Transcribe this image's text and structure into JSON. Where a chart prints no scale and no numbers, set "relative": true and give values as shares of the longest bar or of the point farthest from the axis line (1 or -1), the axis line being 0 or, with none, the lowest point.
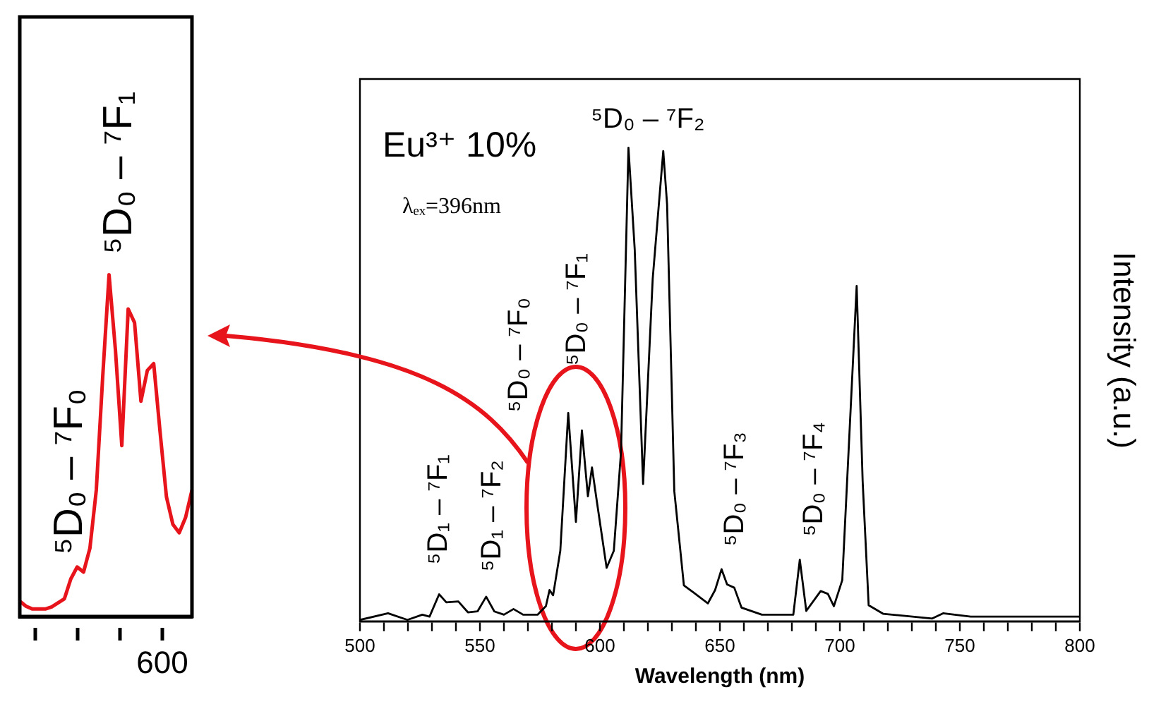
{
  "chart_data": [
    {
      "type": "line",
      "relative": true,
      "tick_labels": false,
      "categories": [
        null,
        null,
        null,
        null,
        null,
        null,
        null,
        null,
        null,
        null,
        null,
        null,
        null,
        null,
        null,
        null,
        null,
        null,
        null,
        null,
        null,
        null,
        null,
        null,
        null,
        null,
        null,
        null
      ],
      "annotations": [
        "⁵D₀ – ⁷F₀",
        "⁵D₀ – ⁷F₁",
        "600"
      ],
      "series": [
        {
          "color": "#e8141b",
          "values": [
            0.045,
            0.03,
            0.022,
            0.022,
            0.022,
            0.028,
            0.04,
            0.052,
            0.11,
            0.145,
            0.13,
            0.2,
            0.37,
            0.7,
            1.0,
            0.78,
            0.5,
            0.9,
            0.86,
            0.63,
            0.72,
            0.74,
            0.54,
            0.35,
            0.27,
            0.245,
            0.29,
            0.37
          ]
        }
      ]
    },
    {
      "type": "line",
      "relative": true,
      "tick_labels": "x",
      "xlabel": "Wavelength (nm)",
      "ylabel": "Intensity (a.u.)",
      "xlim": [
        500,
        800
      ],
      "xticks": [
        500,
        {
          "value": 510,
          "label": null
        },
        {
          "value": 520,
          "label": null
        },
        {
          "value": 530,
          "label": null
        },
        {
          "value": 540,
          "label": null
        },
        550,
        {
          "value": 560,
          "label": null
        },
        {
          "value": 570,
          "label": null
        },
        {
          "value": 580,
          "label": null
        },
        {
          "value": 590,
          "label": null
        },
        600,
        {
          "value": 610,
          "label": null
        },
        {
          "value": 620,
          "label": null
        },
        {
          "value": 630,
          "label": null
        },
        {
          "value": 640,
          "label": null
        },
        650,
        {
          "value": 660,
          "label": null
        },
        {
          "value": 670,
          "label": null
        },
        {
          "value": 680,
          "label": null
        },
        {
          "value": 690,
          "label": null
        },
        700,
        {
          "value": 710,
          "label": null
        },
        {
          "value": 720,
          "label": null
        },
        {
          "value": 730,
          "label": null
        },
        {
          "value": 740,
          "label": null
        },
        750,
        {
          "value": 760,
          "label": null
        },
        {
          "value": 770,
          "label": null
        },
        {
          "value": 780,
          "label": null
        },
        {
          "value": 790,
          "label": null
        },
        800
      ],
      "annotations": [
        "Eu³⁺ 10%",
        "λₑₓ=396nm",
        "⁵D₁ – ⁷F₁",
        "⁵D₁ – ⁷F₂",
        "⁵D₀ – ⁷F₀",
        "⁵D₀ – ⁷F₁",
        "⁵D₀ – ⁷F₂",
        "⁵D₀ – ⁷F₃",
        "⁵D₀ – ⁷F₄"
      ],
      "series": [
        {
          "color": "#000000",
          "x": [
            500,
            511.7,
            519.8,
            526,
            529,
            533,
            536,
            541,
            545,
            549,
            552.6,
            556,
            560,
            564,
            568,
            574,
            577.5,
            579,
            580.5,
            583.5,
            586.8,
            590,
            592.5,
            595,
            596.7,
            598.7,
            602.8,
            605.8,
            608.8,
            611.9,
            614.5,
            618,
            622,
            626.4,
            628,
            631,
            635,
            639,
            645,
            648,
            650.7,
            653,
            656,
            659,
            667.5,
            680.6,
            683.3,
            686,
            692,
            695,
            697.5,
            701,
            707,
            709.5,
            712,
            718,
            734,
            738.5,
            743,
            754.5,
            800
          ],
          "values": [
            0.003,
            0.017,
            0.003,
            0.014,
            0.01,
            0.057,
            0.04,
            0.042,
            0.019,
            0.021,
            0.052,
            0.021,
            0.014,
            0.026,
            0.014,
            0.014,
            0.032,
            0.066,
            0.055,
            0.149,
            0.44,
            0.21,
            0.403,
            0.264,
            0.325,
            0.254,
            0.113,
            0.149,
            0.358,
            1.0,
            0.786,
            0.29,
            0.723,
            0.993,
            0.88,
            0.275,
            0.076,
            0.061,
            0.038,
            0.066,
            0.11,
            0.078,
            0.071,
            0.029,
            0.014,
            0.014,
            0.13,
            0.022,
            0.064,
            0.058,
            0.032,
            0.087,
            0.708,
            0.295,
            0.034,
            0.016,
            0.008,
            0.006,
            0.017,
            0.01,
            0.01
          ]
        }
      ]
    }
  ]
}
